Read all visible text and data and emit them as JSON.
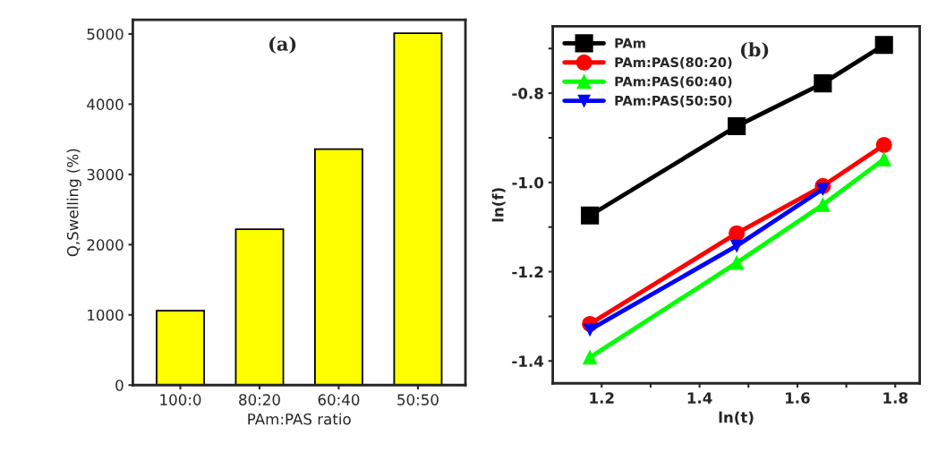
{
  "chart_data": [
    {
      "type": "bar",
      "categories": [
        "100:0",
        "80:20",
        "60:40",
        "50:50"
      ],
      "values": [
        1060,
        2220,
        3360,
        5010
      ],
      "color": "#ffff00",
      "xlabel": "PAm:PAS ratio",
      "ylabel": "Q,Swelling (%)",
      "ylim": [
        0,
        5200
      ],
      "yticks": [
        0,
        1000,
        2000,
        3000,
        4000,
        5000
      ],
      "annotations": [
        "(a)"
      ],
      "grid": false
    },
    {
      "type": "line",
      "xlabel": "ln(t)",
      "ylabel": "ln(f)",
      "xlim": [
        1.1,
        1.85
      ],
      "ylim": [
        -1.45,
        -0.65
      ],
      "xticks": [
        1.2,
        {
          "value": 1.3,
          "label": null
        },
        1.4,
        {
          "value": 1.5,
          "label": null
        },
        1.6,
        {
          "value": 1.7,
          "label": null
        },
        1.8
      ],
      "yticks": [
        -1.4,
        {
          "value": -1.3,
          "label": null
        },
        -1.2,
        {
          "value": -1.1,
          "label": null
        },
        {
          "value": -1.0,
          "label": "-1.0"
        },
        {
          "value": -0.9,
          "label": null
        },
        -0.8,
        {
          "value": -0.7,
          "label": null
        }
      ],
      "annotations": [
        "(b)"
      ],
      "grid": false,
      "legend": "top left",
      "series": [
        {
          "name": "PAm",
          "color": "#000000",
          "marker": "square",
          "x": [
            1.176,
            1.476,
            1.652,
            1.777
          ],
          "values": [
            -1.074,
            -0.874,
            -0.778,
            -0.692
          ]
        },
        {
          "name": "PAm:PAS(80:20)",
          "color": "#ff0000",
          "marker": "circle",
          "x": [
            1.176,
            1.476,
            1.652,
            1.777
          ],
          "values": [
            -1.317,
            -1.114,
            -1.008,
            -0.916
          ]
        },
        {
          "name": "PAm:PAS(60:40)",
          "color": "#00ff00",
          "marker": "triangle",
          "x": [
            1.176,
            1.476,
            1.652,
            1.777
          ],
          "values": [
            -1.392,
            -1.18,
            -1.05,
            -0.948
          ]
        },
        {
          "name": "PAm:PAS(50:50)",
          "color": "#0000ff",
          "marker": "triangle_down",
          "x": [
            1.176,
            1.476,
            1.652
          ],
          "values": [
            -1.33,
            -1.142,
            -1.015
          ]
        }
      ]
    }
  ]
}
